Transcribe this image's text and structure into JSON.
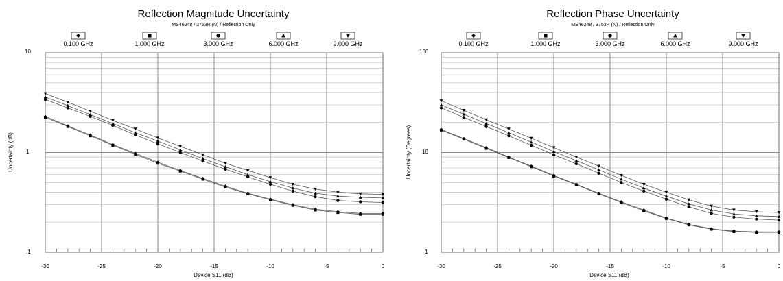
{
  "chart_data": [
    {
      "type": "scatter",
      "title": "Reflection Magnitude Uncertainty",
      "subtitle": "MS46248 / 3753R (N) / Reflection Only",
      "xlabel": "Device S11 (dB)",
      "ylabel": "Uncertainty (dB)",
      "x_ticks": [
        "-30",
        "-25",
        "-20",
        "-15",
        "-10",
        "-5",
        "0"
      ],
      "y_ticks": [
        ".1",
        "1",
        "10"
      ],
      "xlim": [
        -30,
        0
      ],
      "ylim": [
        0.1,
        10
      ],
      "y_scale": "log",
      "grid": true,
      "legend_position": "top",
      "series": [
        {
          "name": "0.100 GHz",
          "marker": "diamond",
          "x": [
            -30,
            -28,
            -26,
            -24,
            -22,
            -20,
            -18,
            -16,
            -14,
            -12,
            -10,
            -8,
            -6,
            -4,
            -2,
            0
          ],
          "y": [
            2.3,
            1.85,
            1.5,
            1.2,
            0.98,
            0.8,
            0.66,
            0.55,
            0.46,
            0.39,
            0.34,
            0.3,
            0.27,
            0.255,
            0.245,
            0.245
          ]
        },
        {
          "name": "1.000 GHz",
          "marker": "square",
          "x": [
            -30,
            -28,
            -26,
            -24,
            -22,
            -20,
            -18,
            -16,
            -14,
            -12,
            -10,
            -8,
            -6,
            -4,
            -2,
            0
          ],
          "y": [
            2.25,
            1.82,
            1.47,
            1.18,
            0.96,
            0.78,
            0.65,
            0.54,
            0.45,
            0.385,
            0.335,
            0.295,
            0.265,
            0.25,
            0.24,
            0.24
          ]
        },
        {
          "name": "3.000 GHz",
          "marker": "circle",
          "x": [
            -30,
            -28,
            -26,
            -24,
            -22,
            -20,
            -18,
            -16,
            -14,
            -12,
            -10,
            -8,
            -6,
            -4,
            -2,
            0
          ],
          "y": [
            3.4,
            2.8,
            2.3,
            1.87,
            1.5,
            1.22,
            1.0,
            0.82,
            0.68,
            0.57,
            0.48,
            0.41,
            0.36,
            0.33,
            0.32,
            0.315
          ]
        },
        {
          "name": "6.000 GHz",
          "marker": "triangle-up",
          "x": [
            -30,
            -28,
            -26,
            -24,
            -22,
            -20,
            -18,
            -16,
            -14,
            -12,
            -10,
            -8,
            -6,
            -4,
            -2,
            0
          ],
          "y": [
            3.6,
            2.95,
            2.4,
            1.95,
            1.58,
            1.3,
            1.06,
            0.87,
            0.72,
            0.6,
            0.51,
            0.44,
            0.39,
            0.365,
            0.355,
            0.35
          ]
        },
        {
          "name": "9.000 GHz",
          "marker": "triangle-down",
          "x": [
            -30,
            -28,
            -26,
            -24,
            -22,
            -20,
            -18,
            -16,
            -14,
            -12,
            -10,
            -8,
            -6,
            -4,
            -2,
            0
          ],
          "y": [
            3.9,
            3.2,
            2.6,
            2.1,
            1.72,
            1.4,
            1.15,
            0.95,
            0.78,
            0.66,
            0.56,
            0.48,
            0.43,
            0.4,
            0.385,
            0.38
          ]
        }
      ]
    },
    {
      "type": "scatter",
      "title": "Reflection Phase Uncertainty",
      "subtitle": "MS46248 / 3753R (N) / Reflection Only",
      "xlabel": "Device S11 (dB)",
      "ylabel": "Uncertainty (Degrees)",
      "x_ticks": [
        "-30",
        "-25",
        "-20",
        "-15",
        "-10",
        "-5",
        "0"
      ],
      "y_ticks": [
        "1",
        "10",
        "100"
      ],
      "xlim": [
        -30,
        0
      ],
      "ylim": [
        1,
        100
      ],
      "y_scale": "log",
      "grid": true,
      "legend_position": "top",
      "series": [
        {
          "name": "0.100 GHz",
          "marker": "diamond",
          "x": [
            -30,
            -28,
            -26,
            -24,
            -22,
            -20,
            -18,
            -16,
            -14,
            -12,
            -10,
            -8,
            -6,
            -4,
            -2,
            0
          ],
          "y": [
            17,
            13.8,
            11.2,
            9.0,
            7.3,
            5.9,
            4.8,
            3.9,
            3.2,
            2.65,
            2.2,
            1.9,
            1.72,
            1.63,
            1.6,
            1.6
          ]
        },
        {
          "name": "1.000 GHz",
          "marker": "square",
          "x": [
            -30,
            -28,
            -26,
            -24,
            -22,
            -20,
            -18,
            -16,
            -14,
            -12,
            -10,
            -8,
            -6,
            -4,
            -2,
            0
          ],
          "y": [
            16.8,
            13.6,
            11.0,
            8.9,
            7.2,
            5.8,
            4.75,
            3.85,
            3.15,
            2.6,
            2.18,
            1.88,
            1.7,
            1.61,
            1.58,
            1.58
          ]
        },
        {
          "name": "3.000 GHz",
          "marker": "circle",
          "x": [
            -30,
            -28,
            -26,
            -24,
            -22,
            -20,
            -18,
            -16,
            -14,
            -12,
            -10,
            -8,
            -6,
            -4,
            -2,
            0
          ],
          "y": [
            28,
            22.5,
            18.2,
            14.7,
            11.8,
            9.5,
            7.7,
            6.2,
            5.0,
            4.1,
            3.4,
            2.85,
            2.45,
            2.25,
            2.15,
            2.1
          ]
        },
        {
          "name": "6.000 GHz",
          "marker": "triangle-up",
          "x": [
            -30,
            -28,
            -26,
            -24,
            -22,
            -20,
            -18,
            -16,
            -14,
            -12,
            -10,
            -8,
            -6,
            -4,
            -2,
            0
          ],
          "y": [
            30,
            24.2,
            19.5,
            15.8,
            12.7,
            10.2,
            8.3,
            6.7,
            5.4,
            4.4,
            3.65,
            3.05,
            2.65,
            2.42,
            2.32,
            2.28
          ]
        },
        {
          "name": "9.000 GHz",
          "marker": "triangle-down",
          "x": [
            -30,
            -28,
            -26,
            -24,
            -22,
            -20,
            -18,
            -16,
            -14,
            -12,
            -10,
            -8,
            -6,
            -4,
            -2,
            0
          ],
          "y": [
            33,
            26.5,
            21.3,
            17.2,
            13.9,
            11.2,
            9.0,
            7.3,
            5.9,
            4.8,
            4.0,
            3.35,
            2.9,
            2.65,
            2.55,
            2.5
          ]
        }
      ]
    }
  ]
}
